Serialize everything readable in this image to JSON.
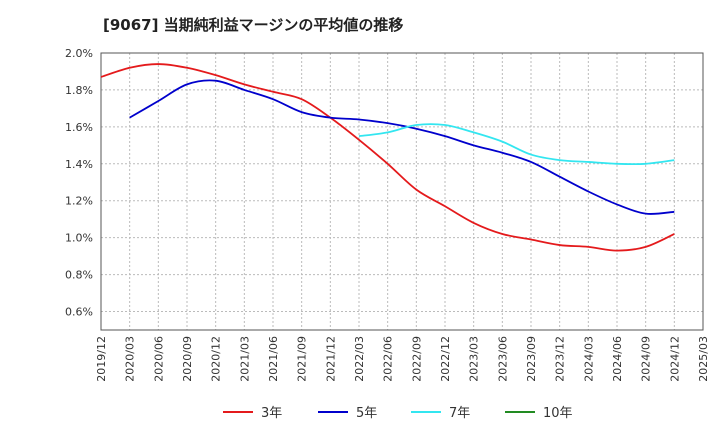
{
  "chart_data": {
    "type": "line",
    "title": "[9067]  当期純利益マージンの平均値の推移",
    "ylim": [
      0.5,
      2.0
    ],
    "y_ticks": [
      "2.0%",
      "1.8%",
      "1.6%",
      "1.4%",
      "1.2%",
      "1.0%",
      "0.8%",
      "0.6%"
    ],
    "y_tick_values": [
      2.0,
      1.8,
      1.6,
      1.4,
      1.2,
      1.0,
      0.8,
      0.6
    ],
    "x_labels": [
      "2019/12",
      "2020/03",
      "2020/06",
      "2020/09",
      "2020/12",
      "2021/03",
      "2021/06",
      "2021/09",
      "2021/12",
      "2022/03",
      "2022/06",
      "2022/09",
      "2022/12",
      "2023/03",
      "2023/06",
      "2023/09",
      "2023/12",
      "2024/03",
      "2024/06",
      "2024/09",
      "2024/12",
      "2025/03"
    ],
    "grid": true,
    "legend_position": "bottom",
    "series": [
      {
        "name": "3年",
        "color": "#e41a1c",
        "values": [
          1.87,
          1.92,
          1.94,
          1.92,
          1.88,
          1.83,
          1.79,
          1.75,
          1.65,
          1.53,
          1.4,
          1.26,
          1.17,
          1.08,
          1.02,
          0.99,
          0.96,
          0.95,
          0.93,
          0.95,
          1.02,
          null
        ]
      },
      {
        "name": "5年",
        "color": "#0000cc",
        "values": [
          null,
          1.65,
          1.74,
          1.83,
          1.85,
          1.8,
          1.75,
          1.68,
          1.65,
          1.64,
          1.62,
          1.59,
          1.55,
          1.5,
          1.46,
          1.41,
          1.33,
          1.25,
          1.18,
          1.13,
          1.14,
          null
        ]
      },
      {
        "name": "7年",
        "color": "#33e6f0",
        "values": [
          null,
          null,
          null,
          null,
          null,
          null,
          null,
          null,
          null,
          1.55,
          1.57,
          1.61,
          1.61,
          1.57,
          1.52,
          1.45,
          1.42,
          1.41,
          1.4,
          1.4,
          1.42,
          null
        ]
      },
      {
        "name": "10年",
        "color": "#228b22",
        "values": []
      }
    ]
  }
}
